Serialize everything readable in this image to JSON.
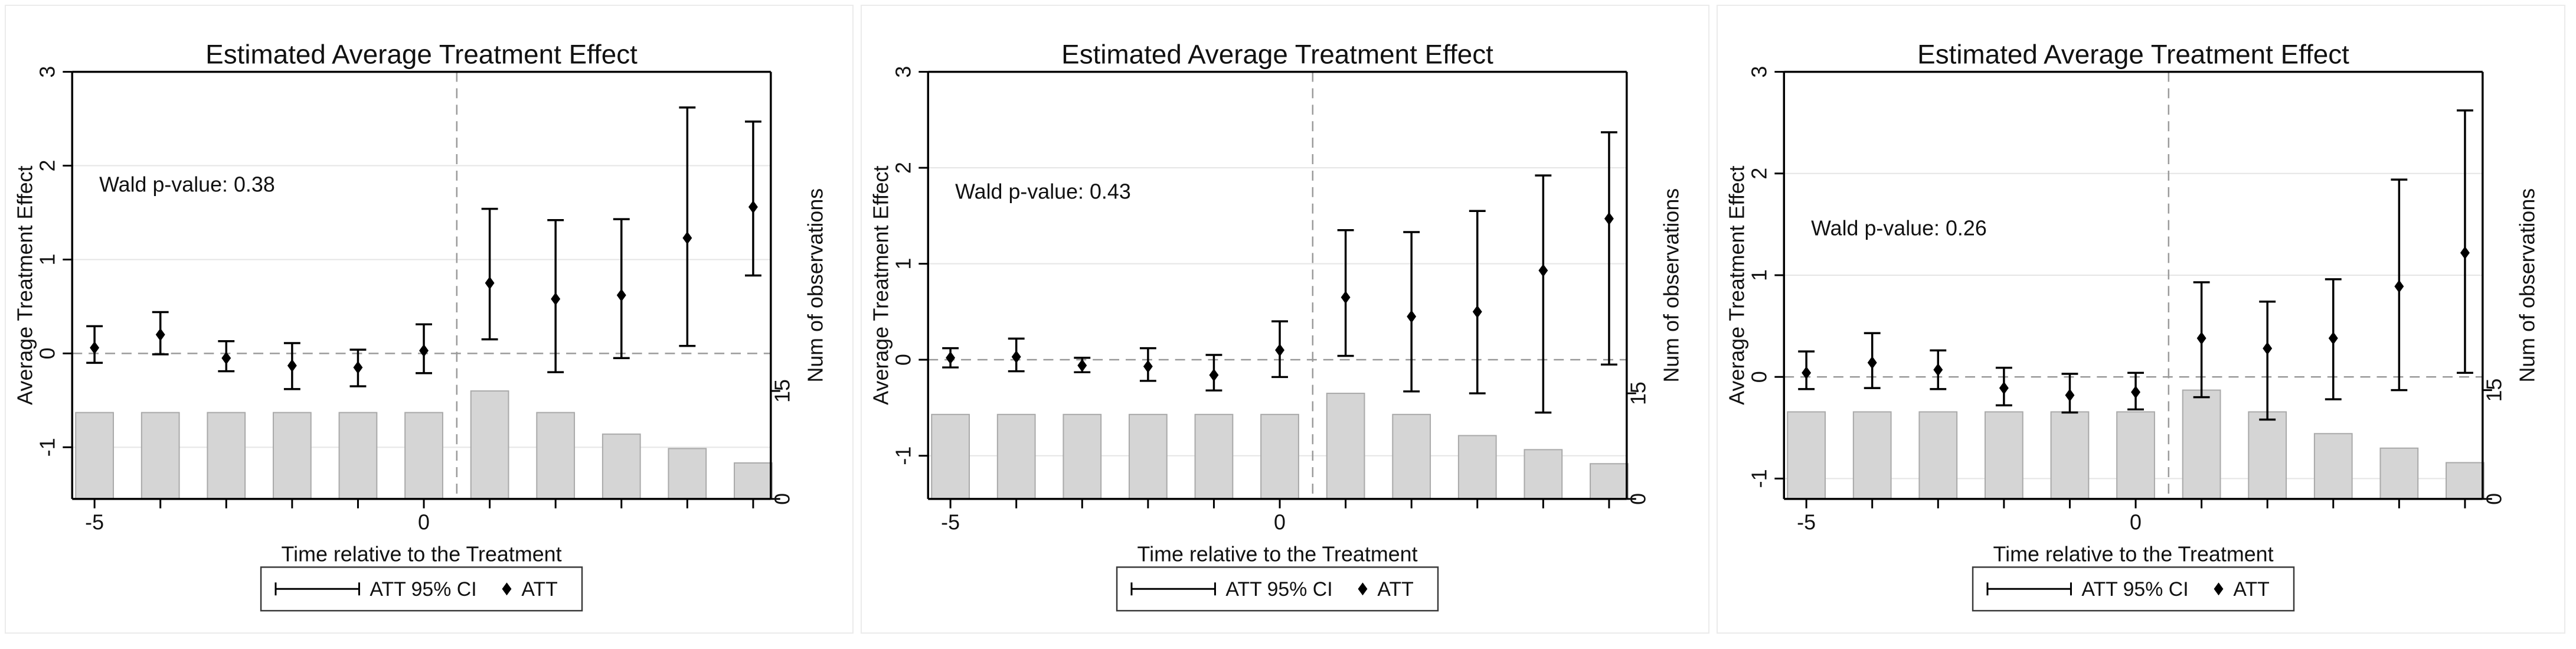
{
  "page": {
    "background": "#ffffff",
    "panel_border": "#ebebeb",
    "colors": {
      "bar_fill": "#d5d5d5",
      "bar_stroke": "#a9a9a9",
      "gridline": "#e5e5e5",
      "dashed_ref": "#9a9a9a",
      "spine": "#000000",
      "marker": "#000000",
      "legend_border": "#3a3a3a",
      "text": "#111111"
    }
  },
  "chart_data": [
    {
      "type": "combo-errorbar-bar",
      "title": "Estimated Average Treatment Effect",
      "annotation": "Wald p-value: 0.38",
      "annotation_y": 1.8,
      "xlabel": "Time relative to the Treatment",
      "ylabel_left": "Average Treatment Effect",
      "ylabel_right": "Num of observations",
      "legend_ci": "ATT 95% CI",
      "legend_att": "ATT",
      "x": [
        -5,
        -4,
        -3,
        -2,
        -1,
        0,
        1,
        2,
        3,
        4,
        5
      ],
      "x_tick_labels": [
        {
          "x": -5,
          "label": "-5"
        },
        {
          "x": 0,
          "label": "0"
        }
      ],
      "y_left_ticks": [
        -1,
        0,
        1,
        2,
        3
      ],
      "y_left_range": [
        -1.55,
        3
      ],
      "y_right_ticks": [
        0,
        15
      ],
      "y_right_15_position": -0.4,
      "ref_line_y": 0,
      "ref_line_x": 0.5,
      "grid": true,
      "legend_position": "bottom-center",
      "series": [
        {
          "name": "ATT",
          "values": [
            0.06,
            0.2,
            -0.05,
            -0.13,
            -0.15,
            0.03,
            0.75,
            0.58,
            0.62,
            1.23,
            1.56
          ]
        },
        {
          "name": "ATT 95% CI low",
          "values": [
            -0.1,
            -0.01,
            -0.19,
            -0.38,
            -0.35,
            -0.21,
            0.15,
            -0.2,
            -0.05,
            0.08,
            0.83
          ]
        },
        {
          "name": "ATT 95% CI high",
          "values": [
            0.29,
            0.44,
            0.13,
            0.11,
            0.04,
            0.31,
            1.54,
            1.42,
            1.43,
            2.62,
            2.47
          ]
        },
        {
          "name": "Num of observations",
          "values": [
            12,
            12,
            12,
            12,
            12,
            12,
            15,
            12,
            9,
            7,
            5
          ]
        }
      ]
    },
    {
      "type": "combo-errorbar-bar",
      "title": "Estimated Average Treatment Effect",
      "annotation": "Wald p-value: 0.43",
      "annotation_y": 1.75,
      "xlabel": "Time relative to the Treatment",
      "ylabel_left": "Average Treatment Effect",
      "ylabel_right": "Num of observations",
      "legend_ci": "ATT 95% CI",
      "legend_att": "ATT",
      "x": [
        -5,
        -4,
        -3,
        -2,
        -1,
        0,
        1,
        2,
        3,
        4,
        5
      ],
      "x_tick_labels": [
        {
          "x": -5,
          "label": "-5"
        },
        {
          "x": 0,
          "label": "0"
        }
      ],
      "y_left_ticks": [
        -1,
        0,
        1,
        2,
        3
      ],
      "y_left_range": [
        -1.45,
        3
      ],
      "y_right_ticks": [
        0,
        15
      ],
      "y_right_15_position": -0.35,
      "ref_line_y": 0,
      "ref_line_x": 0.5,
      "grid": true,
      "legend_position": "bottom-center",
      "series": [
        {
          "name": "ATT",
          "values": [
            0.02,
            0.03,
            -0.06,
            -0.07,
            -0.16,
            0.1,
            0.65,
            0.45,
            0.5,
            0.93,
            1.47
          ]
        },
        {
          "name": "ATT 95% CI low",
          "values": [
            -0.08,
            -0.12,
            -0.13,
            -0.22,
            -0.32,
            -0.18,
            0.04,
            -0.33,
            -0.35,
            -0.55,
            -0.05
          ]
        },
        {
          "name": "ATT 95% CI high",
          "values": [
            0.12,
            0.22,
            0.02,
            0.12,
            0.05,
            0.4,
            1.35,
            1.33,
            1.55,
            1.92,
            2.37
          ]
        },
        {
          "name": "Num of observations",
          "values": [
            12,
            12,
            12,
            12,
            12,
            12,
            15,
            12,
            9,
            7,
            5
          ]
        }
      ]
    },
    {
      "type": "combo-errorbar-bar",
      "title": "Estimated Average Treatment Effect",
      "annotation": "Wald p-value: 0.26",
      "annotation_y": 1.46,
      "xlabel": "Time relative to the Treatment",
      "ylabel_left": "Average Treatment Effect",
      "ylabel_right": "Num of observations",
      "legend_ci": "ATT 95% CI",
      "legend_att": "ATT",
      "x": [
        -5,
        -4,
        -3,
        -2,
        -1,
        0,
        1,
        2,
        3,
        4,
        5
      ],
      "x_tick_labels": [
        {
          "x": -5,
          "label": "-5"
        },
        {
          "x": 0,
          "label": "0"
        }
      ],
      "y_left_ticks": [
        -1,
        0,
        1,
        2,
        3
      ],
      "y_left_range": [
        -1.2,
        3
      ],
      "y_right_ticks": [
        0,
        15
      ],
      "y_right_15_position": -0.13,
      "ref_line_y": 0,
      "ref_line_x": 0.5,
      "grid": true,
      "legend_position": "bottom-center",
      "series": [
        {
          "name": "ATT",
          "values": [
            0.04,
            0.14,
            0.07,
            -0.11,
            -0.18,
            -0.15,
            0.38,
            0.28,
            0.38,
            0.89,
            1.22
          ]
        },
        {
          "name": "ATT 95% CI low",
          "values": [
            -0.12,
            -0.11,
            -0.12,
            -0.28,
            -0.35,
            -0.32,
            -0.2,
            -0.42,
            -0.22,
            -0.13,
            0.04
          ]
        },
        {
          "name": "ATT 95% CI high",
          "values": [
            0.25,
            0.43,
            0.26,
            0.09,
            0.03,
            0.04,
            0.93,
            0.74,
            0.96,
            1.94,
            2.62
          ]
        },
        {
          "name": "Num of observations",
          "values": [
            12,
            12,
            12,
            12,
            12,
            12,
            15,
            12,
            9,
            7,
            5
          ]
        }
      ]
    }
  ]
}
